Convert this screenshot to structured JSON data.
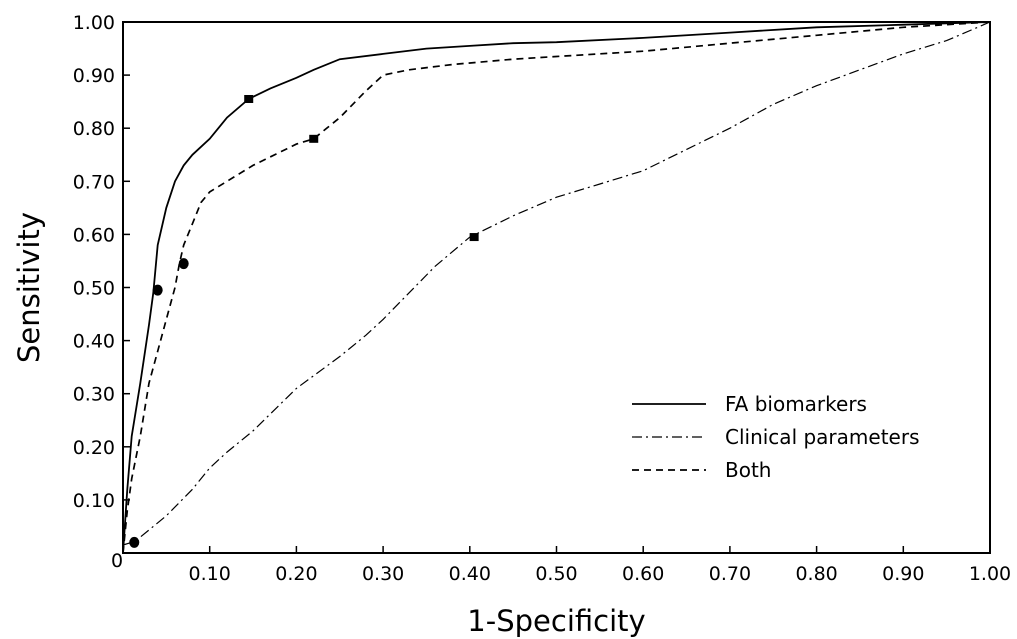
{
  "chart_data": {
    "type": "line",
    "xlabel": "1-Specificity",
    "ylabel": "Sensitivity",
    "xlim": [
      0,
      1
    ],
    "ylim": [
      0,
      1
    ],
    "x_ticks": [
      {
        "value": 0,
        "label": "0"
      },
      {
        "value": 0.1,
        "label": "0.10"
      },
      {
        "value": 0.2,
        "label": "0.20"
      },
      {
        "value": 0.3,
        "label": "0.30"
      },
      {
        "value": 0.4,
        "label": "0.40"
      },
      {
        "value": 0.5,
        "label": "0.50"
      },
      {
        "value": 0.6,
        "label": "0.60"
      },
      {
        "value": 0.7,
        "label": "0.70"
      },
      {
        "value": 0.8,
        "label": "0.80"
      },
      {
        "value": 0.9,
        "label": "0.90"
      },
      {
        "value": 1.0,
        "label": "1.00"
      }
    ],
    "y_ticks": [
      {
        "value": 0.1,
        "label": "0.10"
      },
      {
        "value": 0.2,
        "label": "0.20"
      },
      {
        "value": 0.3,
        "label": "0.30"
      },
      {
        "value": 0.4,
        "label": "0.40"
      },
      {
        "value": 0.5,
        "label": "0.50"
      },
      {
        "value": 0.6,
        "label": "0.60"
      },
      {
        "value": 0.7,
        "label": "0.70"
      },
      {
        "value": 0.8,
        "label": "0.80"
      },
      {
        "value": 0.9,
        "label": "0.90"
      },
      {
        "value": 1.0,
        "label": "1.00"
      }
    ],
    "grid": false,
    "legend_position": "lower-right",
    "series": [
      {
        "name": "FA biomarkers",
        "line_style": "solid",
        "x": [
          0,
          0.005,
          0.01,
          0.02,
          0.03,
          0.035,
          0.04,
          0.05,
          0.06,
          0.07,
          0.08,
          0.1,
          0.12,
          0.145,
          0.17,
          0.2,
          0.22,
          0.25,
          0.3,
          0.35,
          0.4,
          0.45,
          0.5,
          0.6,
          0.7,
          0.8,
          0.9,
          1.0
        ],
        "y": [
          0,
          0.12,
          0.22,
          0.32,
          0.43,
          0.49,
          0.58,
          0.65,
          0.7,
          0.73,
          0.75,
          0.78,
          0.82,
          0.855,
          0.875,
          0.895,
          0.91,
          0.93,
          0.94,
          0.95,
          0.955,
          0.96,
          0.962,
          0.97,
          0.98,
          0.99,
          0.995,
          1.0
        ],
        "markers": [
          {
            "x": 0.04,
            "y": 0.495,
            "shape": "circle"
          },
          {
            "x": 0.145,
            "y": 0.855,
            "shape": "square"
          }
        ]
      },
      {
        "name": "Clinical parameters",
        "line_style": "dashdot",
        "x": [
          0,
          0.01,
          0.02,
          0.05,
          0.08,
          0.1,
          0.12,
          0.15,
          0.2,
          0.25,
          0.28,
          0.3,
          0.33,
          0.36,
          0.4,
          0.45,
          0.5,
          0.55,
          0.6,
          0.65,
          0.7,
          0.75,
          0.8,
          0.85,
          0.9,
          0.95,
          1.0
        ],
        "y": [
          0.015,
          0.02,
          0.03,
          0.07,
          0.12,
          0.16,
          0.19,
          0.23,
          0.31,
          0.37,
          0.41,
          0.44,
          0.49,
          0.54,
          0.595,
          0.635,
          0.67,
          0.695,
          0.72,
          0.76,
          0.8,
          0.845,
          0.88,
          0.91,
          0.94,
          0.965,
          1.0
        ]
      },
      {
        "name": "Both",
        "line_style": "dashed",
        "x": [
          0,
          0.005,
          0.01,
          0.02,
          0.03,
          0.04,
          0.05,
          0.06,
          0.065,
          0.07,
          0.08,
          0.09,
          0.1,
          0.12,
          0.15,
          0.2,
          0.22,
          0.25,
          0.28,
          0.3,
          0.33,
          0.38,
          0.45,
          0.5,
          0.6,
          0.7,
          0.8,
          0.9,
          1.0
        ],
        "y": [
          0,
          0.08,
          0.14,
          0.22,
          0.32,
          0.38,
          0.44,
          0.5,
          0.545,
          0.58,
          0.62,
          0.66,
          0.68,
          0.7,
          0.73,
          0.77,
          0.78,
          0.82,
          0.87,
          0.9,
          0.91,
          0.92,
          0.93,
          0.935,
          0.945,
          0.96,
          0.975,
          0.99,
          1.0
        ],
        "markers": [
          {
            "x": 0.013,
            "y": 0.02,
            "shape": "circle"
          },
          {
            "x": 0.07,
            "y": 0.545,
            "shape": "circle"
          },
          {
            "x": 0.22,
            "y": 0.78,
            "shape": "square"
          },
          {
            "x": 0.405,
            "y": 0.595,
            "shape": "square"
          }
        ]
      }
    ]
  }
}
